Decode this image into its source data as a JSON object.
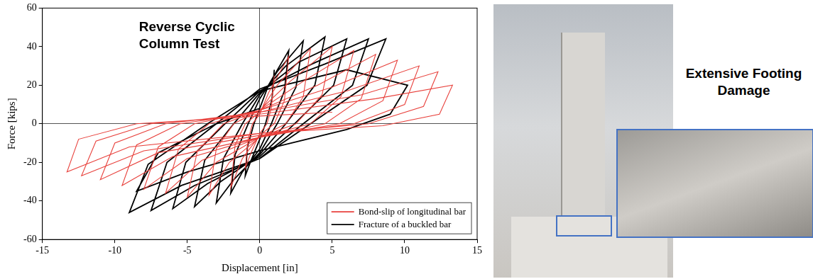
{
  "chart_data": {
    "type": "line",
    "annotation": "Reverse Cyclic Column Test",
    "x_label": "Displacement [in]",
    "y_label": "Force [kips]",
    "xlim": [
      -15,
      15
    ],
    "xticks": [
      -15,
      -10,
      -5,
      0,
      5,
      10,
      15
    ],
    "ylim": [
      -60,
      60
    ],
    "yticks": [
      -60,
      -40,
      -20,
      0,
      20,
      40,
      60
    ],
    "grid": false,
    "legend": "lower right",
    "series": [
      {
        "name": "Bond-slip of longitudinal bar",
        "color": "#e8413c",
        "x": [
          1,
          0.8,
          0.5,
          0,
          -0.6,
          -1,
          -0.8,
          -0.5,
          0,
          0.6,
          2,
          1.7,
          1,
          0,
          -1.2,
          -2,
          -1.7,
          -1,
          0,
          1.2,
          3.5,
          3,
          1.8,
          0,
          -2.1,
          -3.5,
          -3,
          -1.8,
          0,
          2.1,
          5,
          4.3,
          2.5,
          0,
          -3,
          -5,
          -4.3,
          -2.5,
          0,
          3,
          6.5,
          5.6,
          3.5,
          0,
          -4,
          -6.5,
          -5.6,
          -3.5,
          0,
          4,
          8,
          7,
          4.5,
          0,
          -5,
          -8,
          -7,
          -4.5,
          0,
          5,
          9.5,
          8.5,
          5.5,
          0,
          -6,
          -9.5,
          -8.5,
          -5.5,
          0,
          6,
          11,
          10,
          6.5,
          0,
          -7,
          -11,
          -10,
          -6.5,
          0,
          7,
          12.3,
          11.3,
          7.5,
          0,
          -8,
          -12.3,
          -11.3,
          -7.5,
          0,
          8,
          13.3,
          12.4,
          8.5,
          0,
          -9,
          -13.3,
          -12.5,
          -8.5,
          0,
          5
        ],
        "values": [
          25,
          8,
          0,
          -5,
          -15,
          -23,
          -8,
          0,
          5,
          16,
          35,
          12,
          0,
          -6,
          -18,
          -33,
          -11,
          0,
          6,
          20,
          39,
          14,
          0,
          -7,
          -20,
          -37,
          -13,
          0,
          7,
          22,
          40,
          15,
          0,
          -7,
          -20,
          -38,
          -14,
          0,
          7,
          22,
          38,
          14,
          0,
          -7,
          -19,
          -36,
          -13,
          0,
          7,
          20,
          36,
          13,
          0,
          -7,
          -18,
          -34,
          -12,
          0,
          7,
          19,
          33,
          12,
          0,
          -7,
          -17,
          -32,
          -11,
          0,
          6,
          17,
          30,
          10,
          0,
          -6,
          -15,
          -29,
          -10,
          0,
          6,
          15,
          27,
          9,
          0,
          -5,
          -14,
          -27,
          -9,
          0,
          5,
          13,
          20,
          5,
          -1,
          -5,
          -12,
          -25,
          -8,
          0,
          4,
          6
        ]
      },
      {
        "name": "Fracture of a buckled bar",
        "color": "#000000",
        "x": [
          1,
          0.85,
          0.4,
          0,
          -0.6,
          -1,
          -0.85,
          -0.4,
          0,
          0.6,
          2,
          1.7,
          0.8,
          0,
          -1.2,
          -2,
          -1.7,
          -0.8,
          0,
          1.2,
          3,
          2.5,
          1.2,
          0,
          -1.8,
          -3,
          -2.5,
          -1.2,
          0,
          1.8,
          4.5,
          3.8,
          1.8,
          0,
          -2.7,
          -4.5,
          -3.8,
          -1.8,
          0,
          2.7,
          6,
          5.1,
          2.4,
          0,
          -3.6,
          -6,
          -5.1,
          -2.4,
          0,
          3.6,
          7.5,
          6.4,
          3,
          0,
          -4.5,
          -7.5,
          -6.4,
          -3,
          0,
          4.5,
          8.7,
          7.4,
          3.5,
          0,
          -5.4,
          -9,
          -7.7,
          -3.6,
          0,
          6,
          10.2,
          9,
          6,
          0,
          -5,
          -8.5,
          -7,
          -3,
          0
        ],
        "values": [
          28,
          13,
          0,
          -8,
          -19,
          -27,
          -12,
          0,
          8,
          20,
          38,
          17,
          0,
          -13,
          -25,
          -36,
          -16,
          0,
          13,
          27,
          43,
          19,
          0,
          -15,
          -29,
          -41,
          -18,
          0,
          15,
          30,
          45,
          20,
          0,
          -16,
          -30,
          -43,
          -19,
          0,
          16,
          32,
          44,
          20,
          0,
          -17,
          -31,
          -44,
          -20,
          0,
          17,
          31,
          44,
          20,
          0,
          -18,
          -32,
          -45,
          -20,
          0,
          18,
          31,
          44,
          20,
          0,
          -18,
          -32,
          -46,
          -21,
          0,
          17,
          28,
          20,
          5,
          -3,
          -14,
          -25,
          -35,
          -15,
          0,
          8
        ]
      }
    ]
  },
  "photo": {
    "label": "Extensive Footing Damage"
  }
}
